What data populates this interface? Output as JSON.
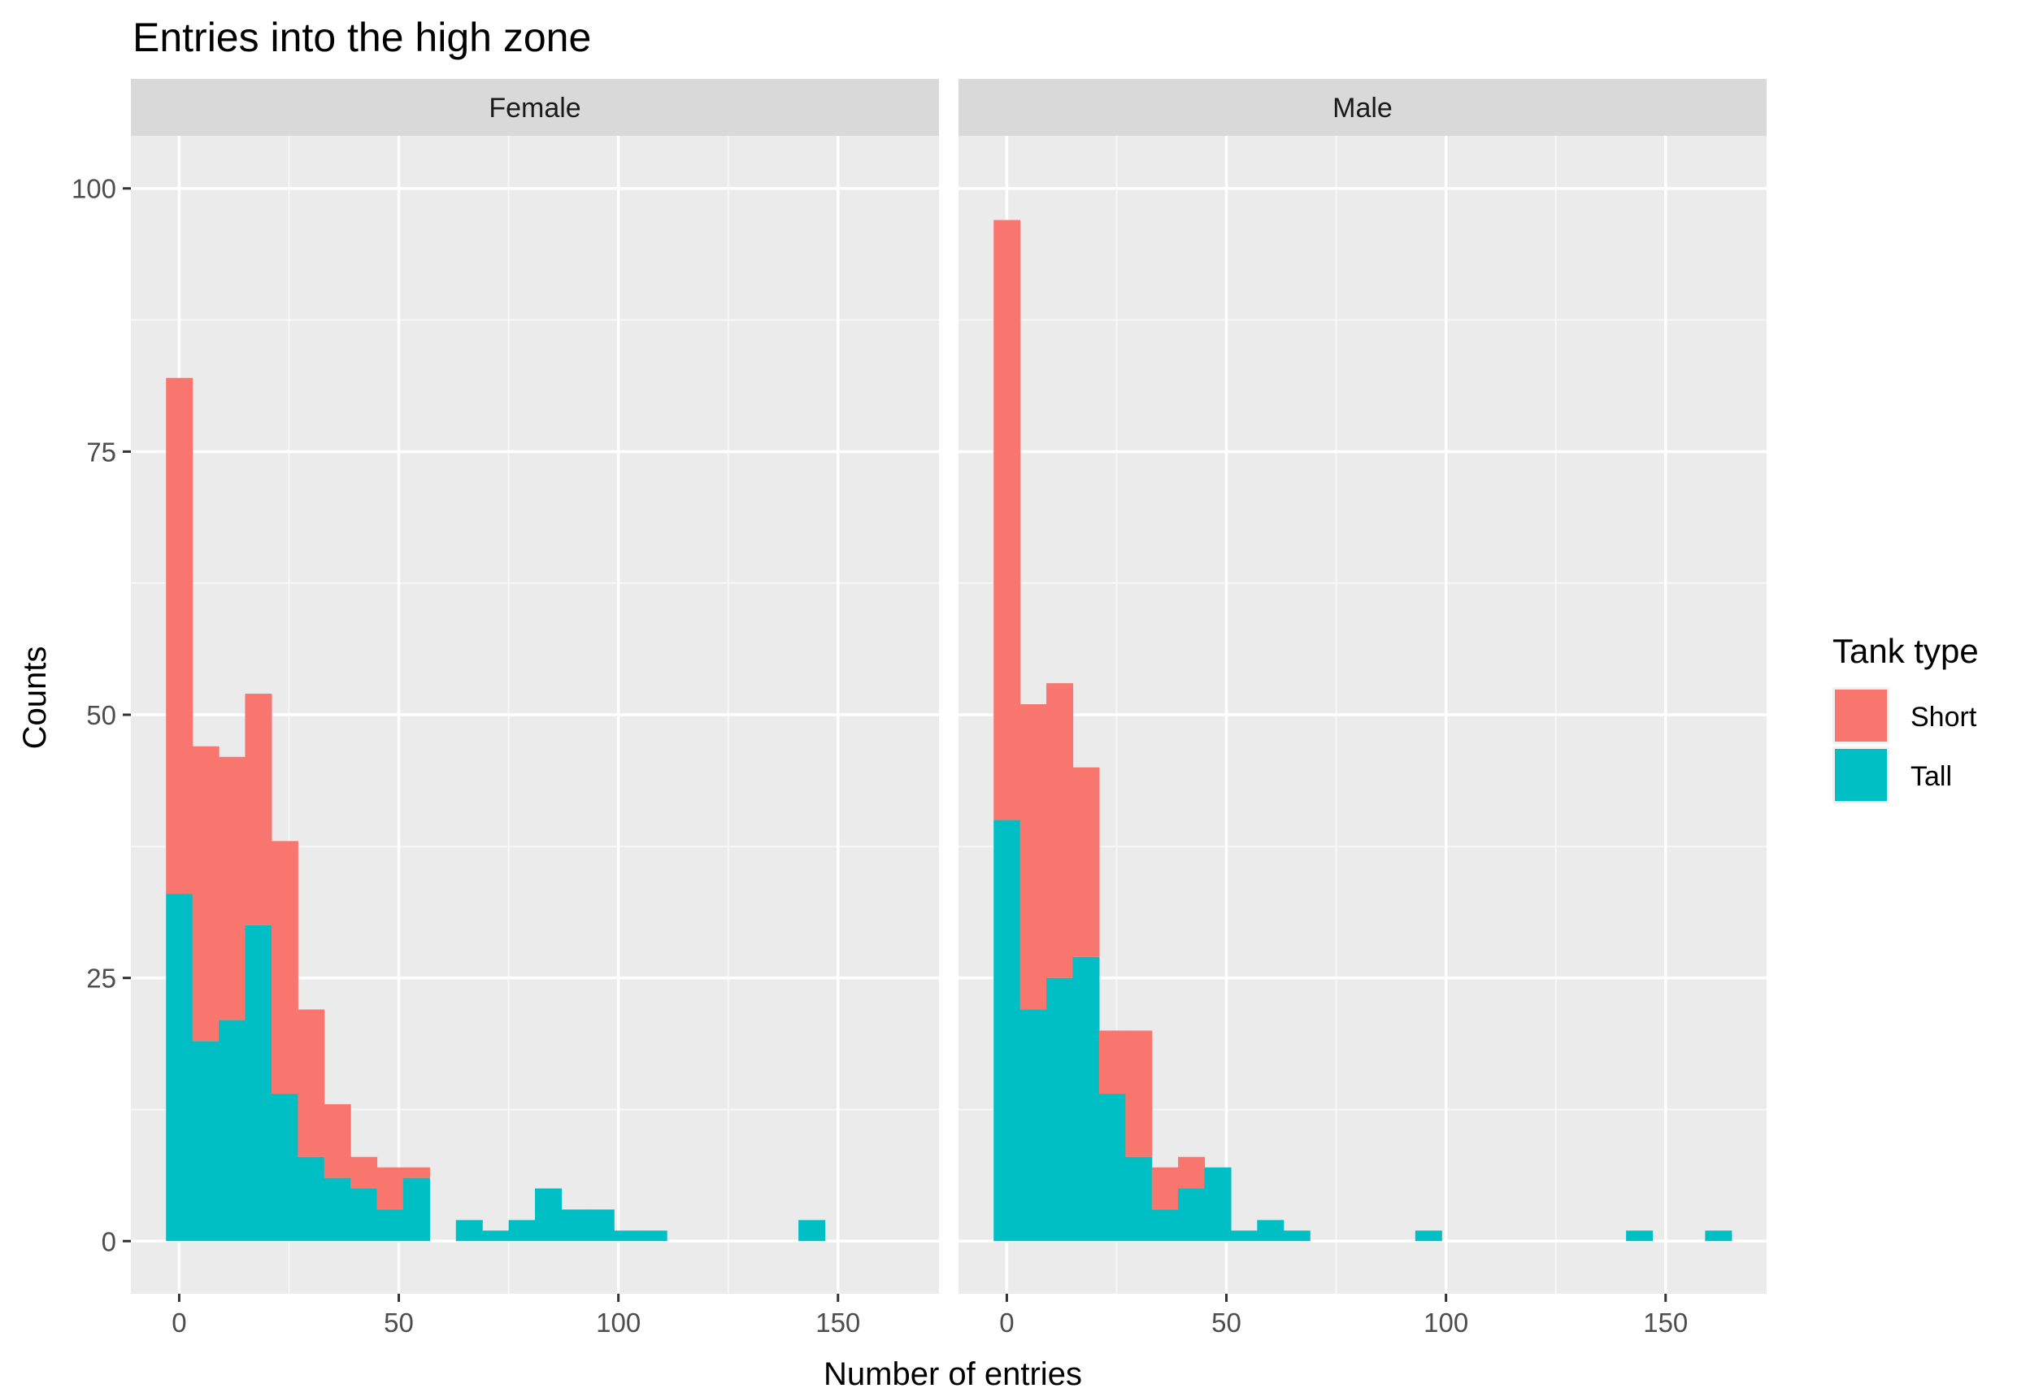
{
  "chart_data": {
    "type": "bar",
    "subtype": "stacked-histogram-faceted",
    "title": "Entries into the high zone",
    "xlabel": "Number of entries",
    "ylabel": "Counts",
    "xlim": [
      -11,
      173
    ],
    "ylim": [
      -5,
      105
    ],
    "x_ticks": [
      0,
      50,
      100,
      150
    ],
    "y_ticks": [
      0,
      25,
      50,
      75,
      100
    ],
    "grid": true,
    "bin_width": 6,
    "legend": {
      "title": "Tank type",
      "position": "right",
      "items": [
        {
          "name": "Short",
          "color": "#F8766D"
        },
        {
          "name": "Tall",
          "color": "#00BFC4"
        }
      ]
    },
    "panels": [
      {
        "label": "Female",
        "x": [
          0,
          6,
          12,
          18,
          24,
          30,
          36,
          42,
          48,
          54,
          66,
          72,
          78,
          84,
          90,
          96,
          102,
          108,
          144
        ],
        "series": [
          {
            "name": "Tall",
            "values": [
              33,
              19,
              21,
              30,
              14,
              8,
              6,
              5,
              3,
              6,
              2,
              1,
              2,
              5,
              3,
              3,
              1,
              1,
              2
            ]
          },
          {
            "name": "Short",
            "values": [
              49,
              28,
              25,
              22,
              24,
              14,
              7,
              3,
              4,
              1,
              0,
              0,
              0,
              0,
              0,
              0,
              0,
              0,
              0
            ]
          }
        ]
      },
      {
        "label": "Male",
        "x": [
          0,
          6,
          12,
          18,
          24,
          30,
          36,
          42,
          48,
          54,
          60,
          66,
          96,
          144,
          162
        ],
        "series": [
          {
            "name": "Tall",
            "values": [
              40,
              22,
              25,
              27,
              14,
              8,
              3,
              5,
              7,
              1,
              2,
              1,
              1,
              1,
              1
            ]
          },
          {
            "name": "Short",
            "values": [
              57,
              29,
              28,
              18,
              6,
              12,
              4,
              3,
              0,
              0,
              0,
              0,
              0,
              0,
              0
            ]
          }
        ]
      }
    ]
  }
}
